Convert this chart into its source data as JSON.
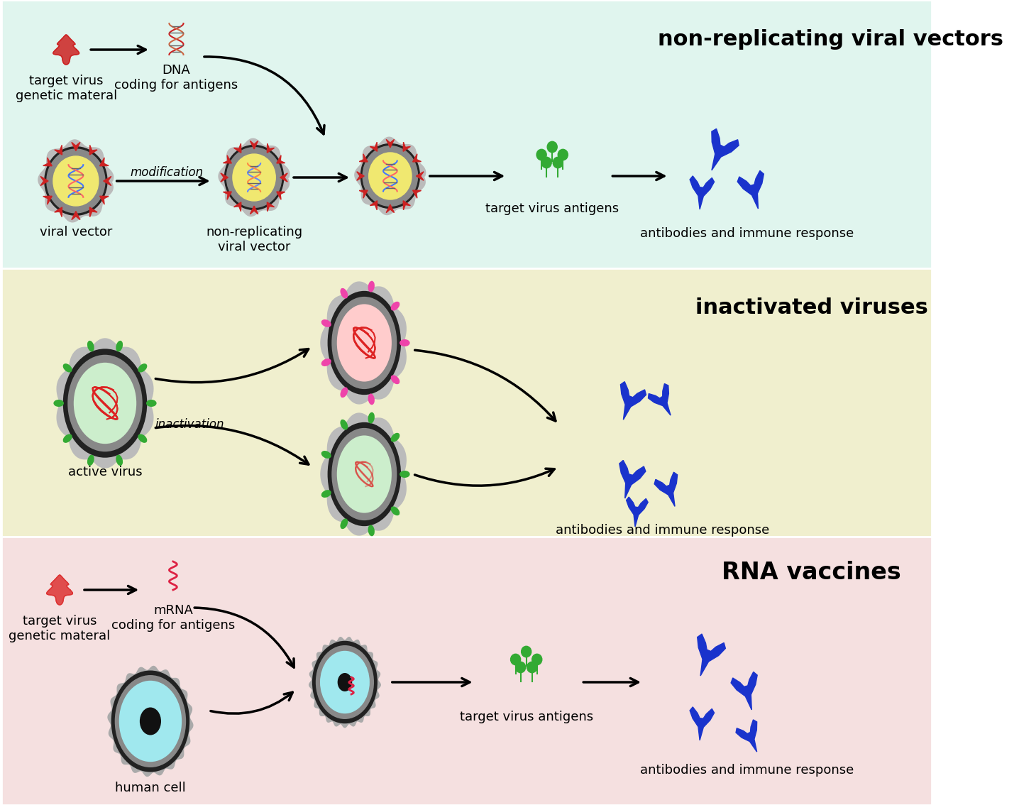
{
  "panel_colors": [
    "#e0f5ee",
    "#f0efce",
    "#f5e0e0"
  ],
  "panel_titles": [
    "non-replicating viral vectors",
    "inactivated viruses",
    "RNA vaccines"
  ],
  "title_fontsize": 22,
  "label_fontsize": 13
}
